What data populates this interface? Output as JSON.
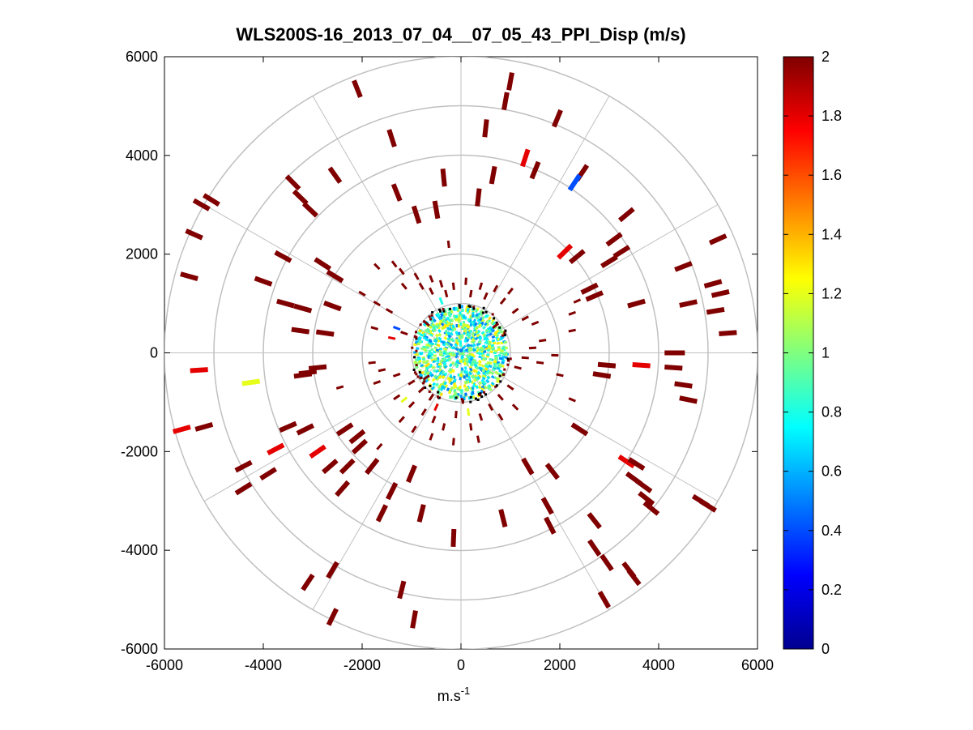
{
  "chart_data": {
    "type": "polar-scatter",
    "title": "WLS200S-16_2013_07_04__07_05_43_PPI_Disp (m/s)",
    "xlabel_base": "m.s",
    "xlabel_exp": "-1",
    "ylabel": "",
    "xlim": [
      -6000,
      6000
    ],
    "ylim": [
      -6000,
      6000
    ],
    "x_ticks": [
      -6000,
      -4000,
      -2000,
      0,
      2000,
      4000,
      6000
    ],
    "y_ticks": [
      -6000,
      -4000,
      -2000,
      0,
      2000,
      4000,
      6000
    ],
    "x_tick_labels": [
      "-6000",
      "-4000",
      "-2000",
      "0",
      "2000",
      "4000",
      "6000"
    ],
    "y_tick_labels": [
      "-6000",
      "-4000",
      "-2000",
      "0",
      "2000",
      "4000",
      "6000"
    ],
    "polar_grid": {
      "rings": [
        1000,
        2000,
        3000,
        4000,
        5000,
        6000
      ],
      "spoke_angles_deg": [
        0,
        30,
        60,
        90,
        120,
        150,
        180,
        210,
        240,
        270,
        300,
        330
      ]
    },
    "colorbar": {
      "range": [
        0,
        2
      ],
      "colormap": "jet",
      "ticks": [
        0,
        0.2,
        0.4,
        0.6,
        0.8,
        1,
        1.2,
        1.4,
        1.6,
        1.8,
        2
      ],
      "tick_labels": [
        "0",
        "0.2",
        "0.4",
        "0.6",
        "0.8",
        "1",
        "1.2",
        "1.4",
        "1.6",
        "1.8",
        "2"
      ]
    },
    "points": [
      {
        "x": -2100,
        "y": 5350,
        "v": 2
      },
      {
        "x": 1000,
        "y": 5500,
        "v": 2
      },
      {
        "x": 900,
        "y": 5100,
        "v": 2
      },
      {
        "x": 1950,
        "y": 4750,
        "v": 2
      },
      {
        "x": 500,
        "y": 4550,
        "v": 2
      },
      {
        "x": -1400,
        "y": 4350,
        "v": 2
      },
      {
        "x": 1300,
        "y": 3950,
        "v": 1.8
      },
      {
        "x": 2450,
        "y": 3650,
        "v": 2
      },
      {
        "x": 2300,
        "y": 3450,
        "v": 0.4
      },
      {
        "x": 1500,
        "y": 3700,
        "v": 2
      },
      {
        "x": 650,
        "y": 3600,
        "v": 2
      },
      {
        "x": -3400,
        "y": 3450,
        "v": 2
      },
      {
        "x": -2550,
        "y": 3600,
        "v": 2
      },
      {
        "x": -350,
        "y": 3550,
        "v": 2
      },
      {
        "x": -1300,
        "y": 3250,
        "v": 2
      },
      {
        "x": -5050,
        "y": 3100,
        "v": 2
      },
      {
        "x": -5250,
        "y": 3000,
        "v": 2
      },
      {
        "x": -3250,
        "y": 3150,
        "v": 2
      },
      {
        "x": -3050,
        "y": 2900,
        "v": 2
      },
      {
        "x": 350,
        "y": 3150,
        "v": 2
      },
      {
        "x": -900,
        "y": 2800,
        "v": 2
      },
      {
        "x": -500,
        "y": 2900,
        "v": 2
      },
      {
        "x": 3350,
        "y": 2800,
        "v": 2
      },
      {
        "x": -5400,
        "y": 2400,
        "v": 2
      },
      {
        "x": 5200,
        "y": 2300,
        "v": 2
      },
      {
        "x": 3100,
        "y": 2300,
        "v": 2
      },
      {
        "x": 3250,
        "y": 2050,
        "v": 2
      },
      {
        "x": 3000,
        "y": 1850,
        "v": 2
      },
      {
        "x": 2100,
        "y": 2050,
        "v": 1.8
      },
      {
        "x": 2350,
        "y": 1950,
        "v": 2
      },
      {
        "x": -3600,
        "y": 1950,
        "v": 2
      },
      {
        "x": -2800,
        "y": 1800,
        "v": 2
      },
      {
        "x": -5500,
        "y": 1550,
        "v": 2
      },
      {
        "x": -4000,
        "y": 1450,
        "v": 2
      },
      {
        "x": -2550,
        "y": 1550,
        "v": 2
      },
      {
        "x": -1700,
        "y": 1750,
        "v": 2
      },
      {
        "x": 4500,
        "y": 1750,
        "v": 2
      },
      {
        "x": 2600,
        "y": 1300,
        "v": 2
      },
      {
        "x": 2700,
        "y": 1150,
        "v": 2
      },
      {
        "x": 5100,
        "y": 1400,
        "v": 2
      },
      {
        "x": 5250,
        "y": 1200,
        "v": 2
      },
      {
        "x": -3550,
        "y": 1000,
        "v": 2
      },
      {
        "x": -3200,
        "y": 900,
        "v": 2
      },
      {
        "x": -2600,
        "y": 950,
        "v": 2
      },
      {
        "x": -2000,
        "y": 1200,
        "v": 2
      },
      {
        "x": 4600,
        "y": 1000,
        "v": 2
      },
      {
        "x": 2350,
        "y": 1050,
        "v": 2
      },
      {
        "x": 2250,
        "y": 800,
        "v": 2
      },
      {
        "x": 3550,
        "y": 1000,
        "v": 2
      },
      {
        "x": 5150,
        "y": 850,
        "v": 2
      },
      {
        "x": 5400,
        "y": 400,
        "v": 2
      },
      {
        "x": -3250,
        "y": 450,
        "v": 2
      },
      {
        "x": -2750,
        "y": 400,
        "v": 2
      },
      {
        "x": 2250,
        "y": 450,
        "v": 2
      },
      {
        "x": 4300,
        "y": 0,
        "v": 2
      },
      {
        "x": 4350,
        "y": 0,
        "v": 2
      },
      {
        "x": -5300,
        "y": -350,
        "v": 1.8
      },
      {
        "x": -4250,
        "y": -600,
        "v": 1.2
      },
      {
        "x": -3200,
        "y": -450,
        "v": 2
      },
      {
        "x": -3100,
        "y": -400,
        "v": 2
      },
      {
        "x": -2900,
        "y": -300,
        "v": 2
      },
      {
        "x": -2450,
        "y": -700,
        "v": 2
      },
      {
        "x": 2000,
        "y": -450,
        "v": 2
      },
      {
        "x": 2950,
        "y": -250,
        "v": 2
      },
      {
        "x": 2850,
        "y": -450,
        "v": 2
      },
      {
        "x": 3650,
        "y": -250,
        "v": 1.8
      },
      {
        "x": 4300,
        "y": -300,
        "v": 2
      },
      {
        "x": 4500,
        "y": -650,
        "v": 2
      },
      {
        "x": 4600,
        "y": -950,
        "v": 2
      },
      {
        "x": 2250,
        "y": -950,
        "v": 2
      },
      {
        "x": -5650,
        "y": -1550,
        "v": 1.8
      },
      {
        "x": -5200,
        "y": -1500,
        "v": 2
      },
      {
        "x": -3500,
        "y": -1500,
        "v": 2
      },
      {
        "x": -3150,
        "y": -1550,
        "v": 2
      },
      {
        "x": -2350,
        "y": -1550,
        "v": 2
      },
      {
        "x": -2100,
        "y": -1700,
        "v": 2
      },
      {
        "x": 2400,
        "y": -1550,
        "v": 2
      },
      {
        "x": -3750,
        "y": -1950,
        "v": 1.8
      },
      {
        "x": -2900,
        "y": -2000,
        "v": 1.8
      },
      {
        "x": -2050,
        "y": -1900,
        "v": 2
      },
      {
        "x": -1650,
        "y": -1900,
        "v": 2
      },
      {
        "x": -2650,
        "y": -2300,
        "v": 2
      },
      {
        "x": -2300,
        "y": -2300,
        "v": 2
      },
      {
        "x": -4400,
        "y": -2300,
        "v": 2
      },
      {
        "x": -3900,
        "y": -2450,
        "v": 2
      },
      {
        "x": -1800,
        "y": -2300,
        "v": 2
      },
      {
        "x": -1000,
        "y": -2450,
        "v": 2
      },
      {
        "x": 1350,
        "y": -2300,
        "v": 2
      },
      {
        "x": 1850,
        "y": -2400,
        "v": 2
      },
      {
        "x": 3350,
        "y": -2200,
        "v": 1.8
      },
      {
        "x": 3550,
        "y": -2250,
        "v": 2
      },
      {
        "x": 3500,
        "y": -2550,
        "v": 2
      },
      {
        "x": 3700,
        "y": -2700,
        "v": 2
      },
      {
        "x": 3750,
        "y": -2950,
        "v": 2
      },
      {
        "x": 3850,
        "y": -3150,
        "v": 2
      },
      {
        "x": 4850,
        "y": -3000,
        "v": 2
      },
      {
        "x": 5000,
        "y": -3100,
        "v": 2
      },
      {
        "x": -4400,
        "y": -2750,
        "v": 2
      },
      {
        "x": -2400,
        "y": -2750,
        "v": 2
      },
      {
        "x": -1400,
        "y": -2800,
        "v": 2
      },
      {
        "x": -1600,
        "y": -3250,
        "v": 2
      },
      {
        "x": -800,
        "y": -3250,
        "v": 2
      },
      {
        "x": 1750,
        "y": -3100,
        "v": 2
      },
      {
        "x": 2700,
        "y": -3400,
        "v": 2
      },
      {
        "x": 850,
        "y": -3350,
        "v": 2
      },
      {
        "x": 1800,
        "y": -3500,
        "v": 2
      },
      {
        "x": -150,
        "y": -3750,
        "v": 2
      },
      {
        "x": 2700,
        "y": -3950,
        "v": 2
      },
      {
        "x": 2950,
        "y": -4250,
        "v": 2
      },
      {
        "x": 3400,
        "y": -4400,
        "v": 2
      },
      {
        "x": 3500,
        "y": -4550,
        "v": 2
      },
      {
        "x": -2600,
        "y": -4400,
        "v": 2
      },
      {
        "x": -3100,
        "y": -4650,
        "v": 2
      },
      {
        "x": -1200,
        "y": -4800,
        "v": 2
      },
      {
        "x": 2900,
        "y": -5000,
        "v": 2
      },
      {
        "x": -2600,
        "y": -5350,
        "v": 2
      },
      {
        "x": -950,
        "y": -5400,
        "v": 2
      },
      {
        "x": -250,
        "y": 2200,
        "v": 2
      },
      {
        "x": -1350,
        "y": 1800,
        "v": 2
      },
      {
        "x": -1200,
        "y": 1650,
        "v": 2
      },
      {
        "x": -1150,
        "y": 1350,
        "v": 2
      },
      {
        "x": -900,
        "y": 1550,
        "v": 2
      },
      {
        "x": -800,
        "y": 1350,
        "v": 2
      },
      {
        "x": -600,
        "y": 1500,
        "v": 2
      },
      {
        "x": -600,
        "y": 1250,
        "v": 2
      },
      {
        "x": -400,
        "y": 1400,
        "v": 2
      },
      {
        "x": -300,
        "y": 1200,
        "v": 2
      },
      {
        "x": -150,
        "y": 1350,
        "v": 2
      },
      {
        "x": 100,
        "y": 1450,
        "v": 2
      },
      {
        "x": 200,
        "y": 1200,
        "v": 2
      },
      {
        "x": 400,
        "y": 1350,
        "v": 2
      },
      {
        "x": 500,
        "y": 1150,
        "v": 2
      },
      {
        "x": 700,
        "y": 1300,
        "v": 2
      },
      {
        "x": 850,
        "y": 1050,
        "v": 2
      },
      {
        "x": 1000,
        "y": 1250,
        "v": 2
      },
      {
        "x": -1700,
        "y": 1000,
        "v": 2
      },
      {
        "x": -1450,
        "y": 850,
        "v": 2
      },
      {
        "x": -1750,
        "y": 500,
        "v": 2
      },
      {
        "x": -1300,
        "y": 500,
        "v": 0.4
      },
      {
        "x": -1400,
        "y": 300,
        "v": 1.8
      },
      {
        "x": -1150,
        "y": 400,
        "v": 2
      },
      {
        "x": 1100,
        "y": 850,
        "v": 2
      },
      {
        "x": 1300,
        "y": 700,
        "v": 2
      },
      {
        "x": 1500,
        "y": 600,
        "v": 2
      },
      {
        "x": 1650,
        "y": 250,
        "v": 2
      },
      {
        "x": 1450,
        "y": 100,
        "v": 2
      },
      {
        "x": 1300,
        "y": -100,
        "v": 2
      },
      {
        "x": 1600,
        "y": -200,
        "v": 2
      },
      {
        "x": 1900,
        "y": -50,
        "v": 2
      },
      {
        "x": 1150,
        "y": -300,
        "v": 2
      },
      {
        "x": -1600,
        "y": -350,
        "v": 2
      },
      {
        "x": -1800,
        "y": -200,
        "v": 2
      },
      {
        "x": -1300,
        "y": -450,
        "v": 2
      },
      {
        "x": -1000,
        "y": -600,
        "v": 2
      },
      {
        "x": -800,
        "y": -750,
        "v": 2
      },
      {
        "x": -600,
        "y": -900,
        "v": 2
      },
      {
        "x": -1700,
        "y": -600,
        "v": 2
      },
      {
        "x": -1300,
        "y": -900,
        "v": 2
      },
      {
        "x": -1000,
        "y": -1050,
        "v": 2
      },
      {
        "x": -1200,
        "y": -1350,
        "v": 2
      },
      {
        "x": -750,
        "y": -1200,
        "v": 2
      },
      {
        "x": -550,
        "y": -1350,
        "v": 2
      },
      {
        "x": -350,
        "y": -1500,
        "v": 2
      },
      {
        "x": -100,
        "y": -1250,
        "v": 2
      },
      {
        "x": 200,
        "y": -1500,
        "v": 2
      },
      {
        "x": 400,
        "y": -1300,
        "v": 2
      },
      {
        "x": 600,
        "y": -1100,
        "v": 2
      },
      {
        "x": 800,
        "y": -900,
        "v": 2
      },
      {
        "x": 1000,
        "y": -700,
        "v": 2
      },
      {
        "x": 1100,
        "y": -1100,
        "v": 2
      },
      {
        "x": 800,
        "y": -1300,
        "v": 2
      },
      {
        "x": -950,
        "y": -1550,
        "v": 2
      },
      {
        "x": -600,
        "y": -1700,
        "v": 2
      },
      {
        "x": -150,
        "y": -1800,
        "v": 2
      },
      {
        "x": 350,
        "y": -1750,
        "v": 2
      },
      {
        "x": -1150,
        "y": -950,
        "v": 1.2
      },
      {
        "x": 150,
        "y": -1200,
        "v": 1.2
      },
      {
        "x": -500,
        "y": -1100,
        "v": 1.8
      },
      {
        "x": -700,
        "y": -500,
        "v": 2
      },
      {
        "x": 700,
        "y": 550,
        "v": 2
      },
      {
        "x": -700,
        "y": 600,
        "v": 2
      },
      {
        "x": -400,
        "y": 1050,
        "v": 0.8
      }
    ],
    "core_region": {
      "radius_m": 950,
      "dominant_values": [
        0.8,
        1.0,
        1.2,
        0.6
      ]
    }
  }
}
